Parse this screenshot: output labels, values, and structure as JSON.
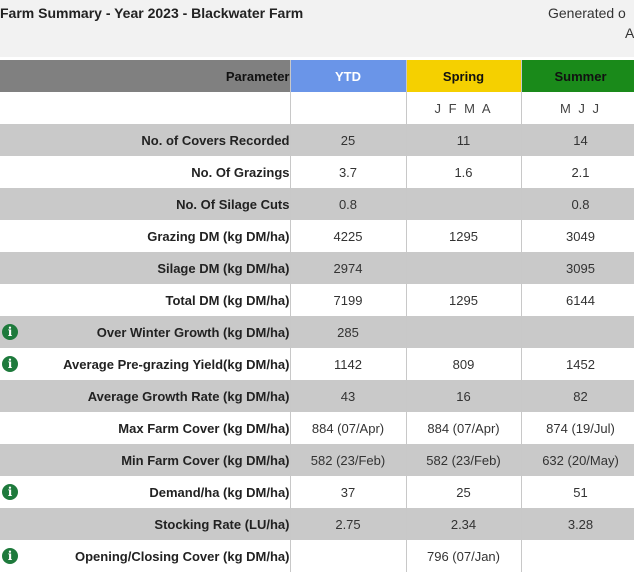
{
  "header": {
    "title": "Farm Summary - Year 2023 - Blackwater Farm",
    "generated_label": "Generated o",
    "generated_sub": "A"
  },
  "table": {
    "headers": {
      "parameter": "Parameter",
      "ytd": "YTD",
      "spring": "Spring",
      "summer": "Summer"
    },
    "months": {
      "ytd": "",
      "spring": "J F M A",
      "summer": "M J J"
    },
    "rows": [
      {
        "label": "No. of Covers Recorded",
        "info": false,
        "ytd": "25",
        "spring": "11",
        "summer": "14"
      },
      {
        "label": "No. Of Grazings",
        "info": false,
        "ytd": "3.7",
        "spring": "1.6",
        "summer": "2.1"
      },
      {
        "label": "No. Of Silage Cuts",
        "info": false,
        "ytd": "0.8",
        "spring": "",
        "summer": "0.8"
      },
      {
        "label": "Grazing DM (kg DM/ha)",
        "info": false,
        "ytd": "4225",
        "spring": "1295",
        "summer": "3049"
      },
      {
        "label": "Silage DM (kg DM/ha)",
        "info": false,
        "ytd": "2974",
        "spring": "",
        "summer": "3095"
      },
      {
        "label": "Total DM (kg DM/ha)",
        "info": false,
        "ytd": "7199",
        "spring": "1295",
        "summer": "6144"
      },
      {
        "label": "Over Winter Growth (kg DM/ha)",
        "info": true,
        "ytd": "285",
        "spring": "",
        "summer": ""
      },
      {
        "label": "Average Pre-grazing Yield(kg DM/ha)",
        "info": true,
        "ytd": "1142",
        "spring": "809",
        "summer": "1452"
      },
      {
        "label": "Average Growth Rate (kg DM/ha)",
        "info": false,
        "ytd": "43",
        "spring": "16",
        "summer": "82"
      },
      {
        "label": "Max Farm Cover (kg DM/ha)",
        "info": false,
        "ytd": "884 (07/Apr)",
        "spring": "884 (07/Apr)",
        "summer": "874 (19/Jul)"
      },
      {
        "label": "Min Farm Cover (kg DM/ha)",
        "info": false,
        "ytd": "582 (23/Feb)",
        "spring": "582 (23/Feb)",
        "summer": "632 (20/May)"
      },
      {
        "label": "Demand/ha (kg DM/ha)",
        "info": true,
        "ytd": "37",
        "spring": "25",
        "summer": "51"
      },
      {
        "label": "Stocking Rate (LU/ha)",
        "info": false,
        "ytd": "2.75",
        "spring": "2.34",
        "summer": "3.28"
      },
      {
        "label": "Opening/Closing Cover (kg DM/ha)",
        "info": true,
        "ytd": "",
        "spring": "796 (07/Jan)",
        "summer": ""
      }
    ],
    "info_icon_glyph": "i"
  },
  "colors": {
    "ytd_header": "#6a95e8",
    "spring_header": "#f5d000",
    "summer_header": "#1a8a1a",
    "parameter_header": "#808080",
    "shaded_row": "#c9c9c9",
    "info_icon": "#1e7a3c"
  }
}
